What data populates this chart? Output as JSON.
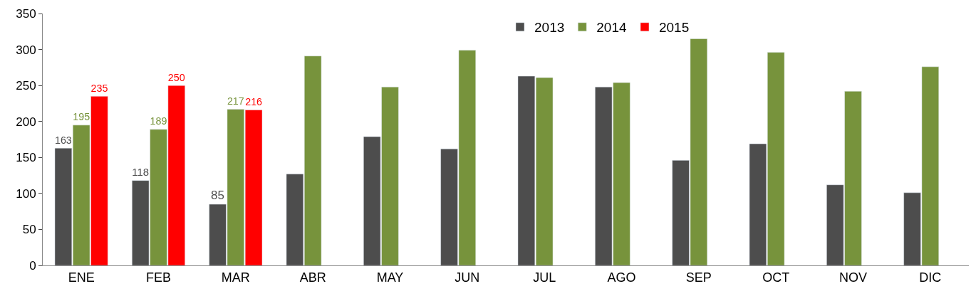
{
  "chart_data": {
    "type": "bar",
    "categories": [
      "ENE",
      "FEB",
      "MAR",
      "ABR",
      "MAY",
      "JUN",
      "JUL",
      "AGO",
      "SEP",
      "OCT",
      "NOV",
      "DIC"
    ],
    "series": [
      {
        "name": "2013",
        "color": "#4d4d4d",
        "values": [
          163,
          118,
          85,
          127,
          179,
          162,
          263,
          248,
          146,
          169,
          112,
          101
        ],
        "value_labels": [
          "163",
          "118",
          "85",
          null,
          null,
          null,
          null,
          null,
          null,
          null,
          null,
          null
        ]
      },
      {
        "name": "2014",
        "color": "#77933c",
        "values": [
          195,
          189,
          217,
          291,
          248,
          299,
          261,
          254,
          315,
          296,
          242,
          276
        ],
        "value_labels": [
          "195",
          "189",
          "217",
          null,
          null,
          null,
          null,
          null,
          null,
          null,
          null,
          null
        ]
      },
      {
        "name": "2015",
        "color": "#ff0000",
        "values": [
          235,
          250,
          216,
          null,
          null,
          null,
          null,
          null,
          null,
          null,
          null,
          null
        ],
        "value_labels": [
          "235",
          "250",
          "216",
          null,
          null,
          null,
          null,
          null,
          null,
          null,
          null,
          null
        ]
      }
    ],
    "ylim": [
      0,
      350
    ],
    "yticks": [
      0,
      50,
      100,
      150,
      200,
      250,
      300,
      350
    ],
    "legend": "top right"
  }
}
